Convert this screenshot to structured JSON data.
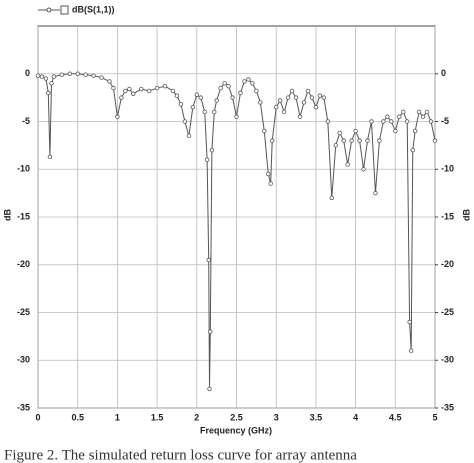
{
  "chart_data": {
    "type": "line",
    "legend_label": "dB(S(1,1))",
    "x_label": "Frequency (GHz)",
    "y_label": "dB",
    "y2_label": "dB",
    "caption": "Figure 2. The simulated return loss curve for array antenna",
    "grid": true,
    "xlim": [
      0,
      5
    ],
    "xticks": [
      0,
      0.5,
      1,
      1.5,
      2,
      2.5,
      3,
      3.5,
      4,
      4.5,
      5
    ],
    "ylim": [
      -35,
      5
    ],
    "yticks": [
      -35,
      -30,
      -25,
      -20,
      -15,
      -10,
      -5,
      0
    ],
    "y2lim": [
      -35,
      5
    ],
    "y2ticks": [
      -35,
      -30,
      -25,
      -20,
      -15,
      -10,
      -5,
      0
    ],
    "x": [
      0,
      0.05,
      0.1,
      0.13,
      0.15,
      0.17,
      0.2,
      0.3,
      0.4,
      0.5,
      0.6,
      0.7,
      0.8,
      0.9,
      0.95,
      1.0,
      1.05,
      1.1,
      1.15,
      1.2,
      1.3,
      1.4,
      1.5,
      1.6,
      1.7,
      1.75,
      1.8,
      1.85,
      1.9,
      1.95,
      2.0,
      2.05,
      2.1,
      2.13,
      2.15,
      2.16,
      2.17,
      2.19,
      2.22,
      2.25,
      2.3,
      2.35,
      2.4,
      2.45,
      2.5,
      2.55,
      2.6,
      2.65,
      2.7,
      2.75,
      2.8,
      2.85,
      2.9,
      2.93,
      2.95,
      3.0,
      3.05,
      3.1,
      3.15,
      3.2,
      3.25,
      3.3,
      3.35,
      3.4,
      3.45,
      3.5,
      3.55,
      3.6,
      3.65,
      3.7,
      3.75,
      3.8,
      3.85,
      3.9,
      3.95,
      4.0,
      4.05,
      4.1,
      4.15,
      4.2,
      4.25,
      4.3,
      4.35,
      4.4,
      4.45,
      4.5,
      4.55,
      4.6,
      4.65,
      4.68,
      4.7,
      4.72,
      4.75,
      4.8,
      4.85,
      4.9,
      4.95,
      5.0
    ],
    "series": [
      {
        "name": "dB(S(1,1))",
        "color": "#555555",
        "values": [
          -0.2,
          -0.3,
          -0.5,
          -2,
          -8.7,
          -1,
          -0.3,
          -0.1,
          0,
          0,
          -0.1,
          -0.2,
          -0.4,
          -0.8,
          -1.5,
          -4.5,
          -2.5,
          -1.8,
          -1.6,
          -2.1,
          -1.6,
          -1.8,
          -1.5,
          -1.3,
          -1.8,
          -2.3,
          -3.2,
          -5,
          -6.5,
          -3.5,
          -2.2,
          -2.5,
          -4,
          -9,
          -19.5,
          -33,
          -27,
          -8,
          -4,
          -2.8,
          -1.5,
          -1,
          -1.3,
          -2.5,
          -4.5,
          -2,
          -0.8,
          -0.6,
          -1,
          -1.8,
          -3,
          -6,
          -10.5,
          -11.5,
          -7,
          -3.5,
          -2.8,
          -4,
          -2.5,
          -1.8,
          -2.5,
          -4.5,
          -3,
          -1.8,
          -2.5,
          -3.5,
          -2.3,
          -2.5,
          -5,
          -13,
          -7.5,
          -6.2,
          -7,
          -9.5,
          -7,
          -6,
          -7,
          -10,
          -7,
          -5,
          -12.5,
          -7,
          -5,
          -4.5,
          -5,
          -6,
          -4.5,
          -4,
          -5,
          -26,
          -29,
          -8,
          -6,
          -4,
          -4.5,
          -4,
          -5,
          -7
        ]
      }
    ]
  }
}
